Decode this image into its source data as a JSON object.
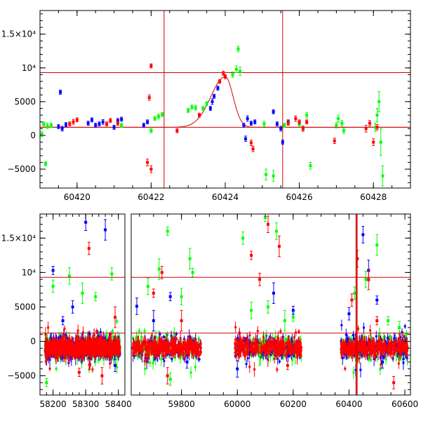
{
  "chart_data": [
    {
      "type": "scatter",
      "panel": "top",
      "xlim": [
        60419,
        60429
      ],
      "ylim": [
        -7800,
        18500
      ],
      "x_ticks": [
        60420,
        60422,
        60424,
        60426,
        60428
      ],
      "x_tick_labels": [
        "60420",
        "60422",
        "60424",
        "60426",
        "60428"
      ],
      "y_ticks": [
        -5000,
        0,
        5000,
        10000,
        15000
      ],
      "y_tick_labels": [
        "−5000",
        "0",
        "5000",
        "10⁴",
        "1.5×10⁴"
      ],
      "horizontal_lines": [
        1200,
        9300
      ],
      "vertical_lines": [
        60422.35,
        60425.55
      ],
      "model_curve": {
        "baseline": 1200,
        "peak_x": 60424,
        "peak_y": 8700,
        "rise_width": 0.55,
        "fall_width": 0.3
      },
      "colors": {
        "blue": "#0000ff",
        "green": "#00ff00",
        "red": "#ff0000",
        "lines": "#d00000"
      },
      "series": [
        {
          "color": "green",
          "points": [
            [
              60419.1,
              1700,
              300
            ],
            [
              60419.2,
              1400,
              400
            ],
            [
              60419.3,
              1500,
              300
            ],
            [
              60419.15,
              -4200,
              300
            ],
            [
              60419.05,
              200,
              400
            ],
            [
              60421.2,
              1500,
              300
            ],
            [
              60422.1,
              2500,
              300
            ],
            [
              60422.2,
              2800,
              350
            ],
            [
              60422.3,
              3100,
              300
            ],
            [
              60422.0,
              700,
              300
            ],
            [
              60423.0,
              3700,
              300
            ],
            [
              60423.1,
              4200,
              300
            ],
            [
              60423.2,
              4100,
              350
            ],
            [
              60423.4,
              4000,
              300
            ],
            [
              60423.5,
              4700,
              300
            ],
            [
              60424.2,
              9000,
              400
            ],
            [
              60424.3,
              9800,
              500
            ],
            [
              60424.35,
              12800,
              400
            ],
            [
              60424.4,
              9500,
              600
            ],
            [
              60425.05,
              1700,
              400
            ],
            [
              60425.1,
              -5800,
              800
            ],
            [
              60425.3,
              -6000,
              800
            ],
            [
              60425.6,
              1500,
              300
            ],
            [
              60426.2,
              3000,
              400
            ],
            [
              60426.3,
              -4500,
              500
            ],
            [
              60426.0,
              1700,
              300
            ],
            [
              60426.1,
              1000,
              400
            ],
            [
              60427.0,
              1500,
              400
            ],
            [
              60427.05,
              2500,
              500
            ],
            [
              60427.15,
              1800,
              400
            ],
            [
              60427.2,
              700,
              400
            ],
            [
              60428.05,
              1200,
              600
            ],
            [
              60428.1,
              3000,
              1000
            ],
            [
              60428.15,
              5000,
              1500
            ],
            [
              60428.2,
              -1000,
              2000
            ],
            [
              60428.25,
              -6000,
              1500
            ]
          ]
        },
        {
          "color": "blue",
          "points": [
            [
              60419.5,
              1300,
              300
            ],
            [
              60419.6,
              1000,
              350
            ],
            [
              60419.55,
              6400,
              300
            ],
            [
              60419.7,
              1600,
              300
            ],
            [
              60420.3,
              1800,
              300
            ],
            [
              60420.4,
              2300,
              300
            ],
            [
              60420.5,
              1500,
              300
            ],
            [
              60420.6,
              1700,
              300
            ],
            [
              60420.7,
              2000,
              350
            ],
            [
              60421.0,
              1200,
              300
            ],
            [
              60421.1,
              2200,
              300
            ],
            [
              60421.2,
              2400,
              300
            ],
            [
              60421.8,
              1500,
              300
            ],
            [
              60421.9,
              2000,
              300
            ],
            [
              60423.6,
              4000,
              300
            ],
            [
              60423.65,
              5000,
              400
            ],
            [
              60423.7,
              5800,
              300
            ],
            [
              60423.8,
              7000,
              300
            ],
            [
              60424.5,
              1500,
              300
            ],
            [
              60424.6,
              2500,
              400
            ],
            [
              60424.7,
              1800,
              300
            ],
            [
              60424.8,
              2000,
              300
            ],
            [
              60424.55,
              -500,
              400
            ],
            [
              60425.3,
              3500,
              300
            ],
            [
              60425.4,
              1700,
              300
            ],
            [
              60425.5,
              1000,
              350
            ],
            [
              60425.55,
              -1000,
              300
            ],
            [
              60425.7,
              2000,
              300
            ]
          ]
        },
        {
          "color": "red",
          "points": [
            [
              60419.8,
              1700,
              300
            ],
            [
              60419.9,
              2000,
              350
            ],
            [
              60420.0,
              2300,
              300
            ],
            [
              60420.8,
              1700,
              300
            ],
            [
              60420.9,
              2200,
              300
            ],
            [
              60421.1,
              1800,
              300
            ],
            [
              60422.0,
              10300,
              300
            ],
            [
              60421.95,
              5600,
              400
            ],
            [
              60421.9,
              -4000,
              500
            ],
            [
              60422.0,
              -5000,
              500
            ],
            [
              60422.7,
              700,
              300
            ],
            [
              60423.3,
              3000,
              300
            ],
            [
              60423.85,
              8000,
              300
            ],
            [
              60423.95,
              9200,
              300
            ],
            [
              60424.0,
              8700,
              300
            ],
            [
              60424.7,
              -1100,
              400
            ],
            [
              60424.75,
              -2000,
              400
            ],
            [
              60425.7,
              1800,
              300
            ],
            [
              60425.9,
              2500,
              400
            ],
            [
              60426.0,
              2000,
              300
            ],
            [
              60426.1,
              1000,
              350
            ],
            [
              60426.2,
              2000,
              300
            ],
            [
              60426.95,
              -800,
              400
            ],
            [
              60427.8,
              1000,
              500
            ],
            [
              60427.9,
              1800,
              400
            ],
            [
              60428.0,
              -1000,
              500
            ],
            [
              60428.1,
              1200,
              400
            ]
          ]
        }
      ]
    },
    {
      "type": "scatter",
      "panel": "bottom",
      "ylim": [
        -7800,
        18500
      ],
      "y_ticks": [
        -5000,
        0,
        5000,
        10000,
        15000
      ],
      "y_tick_labels": [
        "−5000",
        "0",
        "5000",
        "10⁴",
        "1.5×10⁴"
      ],
      "horizontal_lines": [
        1200,
        9300
      ],
      "vertical_lines_data_x": [
        60425.55,
        60428.0
      ],
      "segments": [
        {
          "xlim": [
            58160,
            58420
          ],
          "x_ticks": [
            58200,
            58300,
            58400
          ],
          "x_tick_labels": [
            "58200",
            "58300",
            "58400"
          ],
          "clusters": [
            [
              58175,
              58405
            ]
          ]
        },
        {
          "xlim": [
            59620,
            60620
          ],
          "x_ticks": [
            59800,
            60000,
            60200,
            60400,
            60600
          ],
          "x_tick_labels": [
            "59800",
            "60000",
            "60200",
            "60400",
            "60600"
          ],
          "clusters": [
            [
              59625,
              59870
            ],
            [
              59990,
              60230
            ],
            [
              60370,
              60610
            ]
          ]
        }
      ],
      "scatter_band": {
        "center": -900,
        "half_width": 1800
      },
      "colors": {
        "blue": "#0000ff",
        "green": "#00ff00",
        "red": "#ff0000",
        "lines": "#d00000"
      },
      "series": [
        {
          "color": "green",
          "outliers": [
            [
              58180,
              -6000
            ],
            [
              58200,
              8000
            ],
            [
              58250,
              9500
            ],
            [
              58290,
              7000
            ],
            [
              58330,
              6500
            ],
            [
              58380,
              9800
            ],
            [
              59680,
              8000
            ],
            [
              59720,
              10500
            ],
            [
              59750,
              16000
            ],
            [
              59760,
              -5500
            ],
            [
              59800,
              6500
            ],
            [
              59830,
              12000
            ],
            [
              59840,
              10000
            ],
            [
              60020,
              15000
            ],
            [
              60050,
              4500
            ],
            [
              60080,
              -2000
            ],
            [
              60100,
              18000
            ],
            [
              60110,
              5000
            ],
            [
              60140,
              16000
            ],
            [
              60170,
              3000
            ],
            [
              60200,
              3500
            ],
            [
              60420,
              7000
            ],
            [
              60460,
              9000
            ],
            [
              60500,
              14000
            ],
            [
              60540,
              3000
            ],
            [
              60580,
              2000
            ]
          ]
        },
        {
          "color": "blue",
          "outliers": [
            [
              58200,
              10300
            ],
            [
              58260,
              5000
            ],
            [
              58300,
              17300
            ],
            [
              58360,
              16200
            ],
            [
              58230,
              3000
            ],
            [
              58390,
              -3500
            ],
            [
              59640,
              5100
            ],
            [
              59700,
              3000
            ],
            [
              59760,
              6500
            ],
            [
              59820,
              -3000
            ],
            [
              60000,
              -4000
            ],
            [
              60130,
              7000
            ],
            [
              60200,
              4500
            ],
            [
              60400,
              4000
            ],
            [
              60450,
              15500
            ],
            [
              60470,
              10300
            ],
            [
              60500,
              6000
            ],
            [
              60520,
              -3000
            ]
          ]
        },
        {
          "color": "red",
          "outliers": [
            [
              58280,
              -4500
            ],
            [
              58310,
              13500
            ],
            [
              58350,
              -5000
            ],
            [
              58390,
              3500
            ],
            [
              59700,
              7000
            ],
            [
              59730,
              10000
            ],
            [
              59750,
              -5000
            ],
            [
              59800,
              3000
            ],
            [
              60050,
              12500
            ],
            [
              60080,
              9000
            ],
            [
              60110,
              17000
            ],
            [
              60150,
              13800
            ],
            [
              60180,
              -3500
            ],
            [
              60410,
              6000
            ],
            [
              60430,
              12000
            ],
            [
              60470,
              9000
            ],
            [
              60500,
              3000
            ],
            [
              60560,
              -6000
            ]
          ]
        }
      ]
    }
  ]
}
